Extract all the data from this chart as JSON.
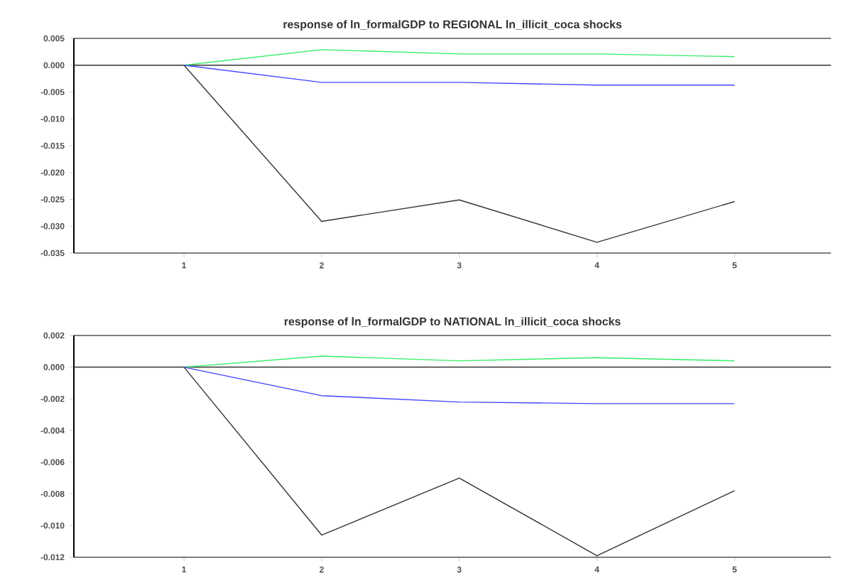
{
  "chart_data": [
    {
      "type": "line",
      "title": "response of ln_formalGDP to REGIONAL ln_illicit_coca shocks",
      "x": [
        1,
        2,
        3,
        4,
        5
      ],
      "xlim": [
        0.2,
        5.7
      ],
      "xticks": [
        1,
        2,
        3,
        4,
        5
      ],
      "ylim": [
        -0.035,
        0.005
      ],
      "yticks": [
        {
          "value": 0.005,
          "label": "0.005"
        },
        {
          "value": 0,
          "label": "0.000"
        },
        {
          "value": -0.005,
          "label": "-0.005"
        },
        {
          "value": -0.01,
          "label": "-0.010"
        },
        {
          "value": -0.015,
          "label": "-0.015"
        },
        {
          "value": -0.02,
          "label": "-0.020"
        },
        {
          "value": -0.025,
          "label": "-0.025"
        },
        {
          "value": -0.03,
          "label": "-0.030"
        },
        {
          "value": -0.035,
          "label": "-0.035"
        }
      ],
      "ref_lines": [
        {
          "axis": "y",
          "value": 0,
          "color": "#333333"
        }
      ],
      "series": [
        {
          "color": "#33ee66",
          "values": [
            0,
            0.0029,
            0.0021,
            0.0021,
            0.0016
          ]
        },
        {
          "color": "#4444ff",
          "values": [
            0,
            -0.0032,
            -0.0032,
            -0.0037,
            -0.0037
          ]
        },
        {
          "color": "#333333",
          "values": [
            0,
            -0.0291,
            -0.0251,
            -0.033,
            -0.0254
          ]
        }
      ]
    },
    {
      "type": "line",
      "title": "response of ln_formalGDP to NATIONAL ln_illicit_coca shocks",
      "x": [
        1,
        2,
        3,
        4,
        5
      ],
      "xlim": [
        0.2,
        5.7
      ],
      "xticks": [
        1,
        2,
        3,
        4,
        5
      ],
      "ylim": [
        -0.012,
        0.002
      ],
      "yticks": [
        {
          "value": 0.002,
          "label": "0.002"
        },
        {
          "value": 0,
          "label": "0.000"
        },
        {
          "value": -0.002,
          "label": "-0.002"
        },
        {
          "value": -0.004,
          "label": "-0.004"
        },
        {
          "value": -0.006,
          "label": "-0.006"
        },
        {
          "value": -0.008,
          "label": "-0.008"
        },
        {
          "value": -0.01,
          "label": "-0.010"
        },
        {
          "value": -0.012,
          "label": "-0.012"
        }
      ],
      "ref_lines": [
        {
          "axis": "y",
          "value": 0,
          "color": "#333333"
        }
      ],
      "series": [
        {
          "color": "#33ee66",
          "values": [
            0,
            0.0007,
            0.0004,
            0.0006,
            0.0004
          ]
        },
        {
          "color": "#4444ff",
          "values": [
            0,
            -0.0018,
            -0.0022,
            -0.0023,
            -0.0023
          ]
        },
        {
          "color": "#333333",
          "values": [
            0,
            -0.0106,
            -0.007,
            -0.0119,
            -0.0078
          ]
        }
      ]
    }
  ]
}
